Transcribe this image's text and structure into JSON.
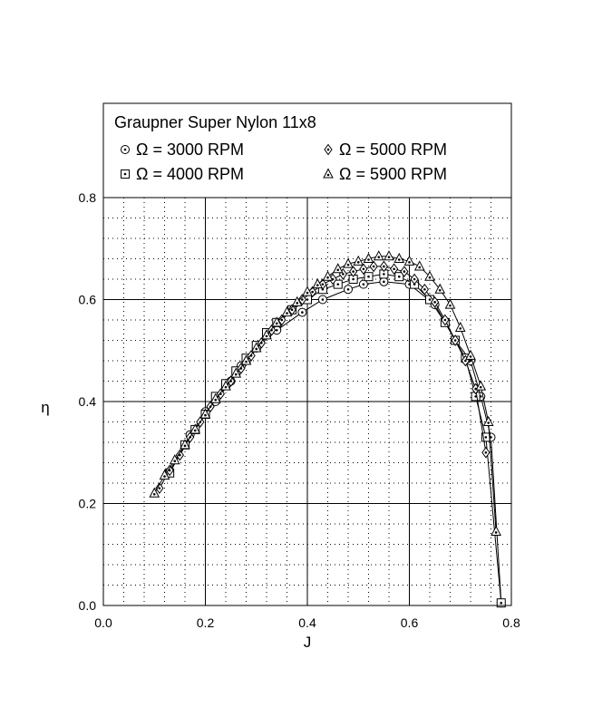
{
  "chart_data": {
    "type": "line",
    "title": "",
    "legend": {
      "title": "Graupner Super Nylon 11x8",
      "placement": "top",
      "columns": 2
    },
    "xlabel": "J",
    "ylabel": "η",
    "xlim": [
      0.0,
      0.8
    ],
    "ylim": [
      0.0,
      0.8
    ],
    "xticks": [
      "0.0",
      "0.2",
      "0.4",
      "0.6",
      "0.8"
    ],
    "yticks": [
      "0.0",
      "0.2",
      "0.4",
      "0.6",
      "0.8"
    ],
    "grid": {
      "major": true,
      "minor": true,
      "minor_style": "dotted"
    },
    "series": [
      {
        "name": "Ω = 3000 RPM",
        "marker": "circle-dot",
        "x": [
          0.13,
          0.17,
          0.2,
          0.22,
          0.25,
          0.27,
          0.3,
          0.34,
          0.39,
          0.43,
          0.48,
          0.51,
          0.55,
          0.6,
          0.65,
          0.69,
          0.72,
          0.74,
          0.76,
          0.78
        ],
        "y": [
          0.26,
          0.335,
          0.38,
          0.4,
          0.44,
          0.47,
          0.505,
          0.54,
          0.575,
          0.6,
          0.62,
          0.63,
          0.635,
          0.63,
          0.59,
          0.52,
          0.48,
          0.41,
          0.33,
          0.005
        ]
      },
      {
        "name": "Ω = 4000 RPM",
        "marker": "square-dot",
        "x": [
          0.13,
          0.16,
          0.18,
          0.2,
          0.22,
          0.24,
          0.26,
          0.28,
          0.3,
          0.32,
          0.34,
          0.37,
          0.4,
          0.43,
          0.46,
          0.49,
          0.52,
          0.55,
          0.58,
          0.61,
          0.64,
          0.67,
          0.69,
          0.71,
          0.73,
          0.75,
          0.78
        ],
        "y": [
          0.26,
          0.315,
          0.345,
          0.375,
          0.41,
          0.435,
          0.46,
          0.485,
          0.51,
          0.535,
          0.555,
          0.58,
          0.6,
          0.62,
          0.63,
          0.64,
          0.645,
          0.65,
          0.645,
          0.63,
          0.6,
          0.555,
          0.52,
          0.485,
          0.41,
          0.33,
          0.005
        ]
      },
      {
        "name": "Ω = 5000 RPM",
        "marker": "diamond-dot",
        "x": [
          0.11,
          0.13,
          0.15,
          0.17,
          0.19,
          0.21,
          0.23,
          0.25,
          0.27,
          0.29,
          0.31,
          0.33,
          0.35,
          0.37,
          0.39,
          0.41,
          0.43,
          0.45,
          0.47,
          0.49,
          0.51,
          0.53,
          0.55,
          0.57,
          0.59,
          0.61,
          0.63,
          0.65,
          0.67,
          0.69,
          0.71,
          0.73,
          0.75
        ],
        "y": [
          0.23,
          0.265,
          0.295,
          0.33,
          0.36,
          0.39,
          0.415,
          0.44,
          0.465,
          0.49,
          0.515,
          0.54,
          0.56,
          0.58,
          0.6,
          0.615,
          0.63,
          0.64,
          0.65,
          0.655,
          0.66,
          0.665,
          0.665,
          0.66,
          0.655,
          0.64,
          0.62,
          0.595,
          0.56,
          0.52,
          0.48,
          0.425,
          0.3
        ]
      },
      {
        "name": "Ω = 5900 RPM",
        "marker": "triangle-dot",
        "x": [
          0.1,
          0.12,
          0.14,
          0.16,
          0.18,
          0.2,
          0.22,
          0.24,
          0.26,
          0.28,
          0.3,
          0.32,
          0.34,
          0.36,
          0.38,
          0.4,
          0.42,
          0.44,
          0.46,
          0.48,
          0.5,
          0.52,
          0.54,
          0.56,
          0.58,
          0.6,
          0.62,
          0.64,
          0.66,
          0.68,
          0.7,
          0.72,
          0.74,
          0.755,
          0.77
        ],
        "y": [
          0.22,
          0.255,
          0.285,
          0.315,
          0.345,
          0.375,
          0.405,
          0.43,
          0.455,
          0.48,
          0.505,
          0.53,
          0.555,
          0.575,
          0.595,
          0.615,
          0.63,
          0.645,
          0.66,
          0.67,
          0.675,
          0.68,
          0.685,
          0.685,
          0.68,
          0.675,
          0.665,
          0.645,
          0.62,
          0.59,
          0.545,
          0.49,
          0.43,
          0.36,
          0.145
        ]
      }
    ]
  }
}
